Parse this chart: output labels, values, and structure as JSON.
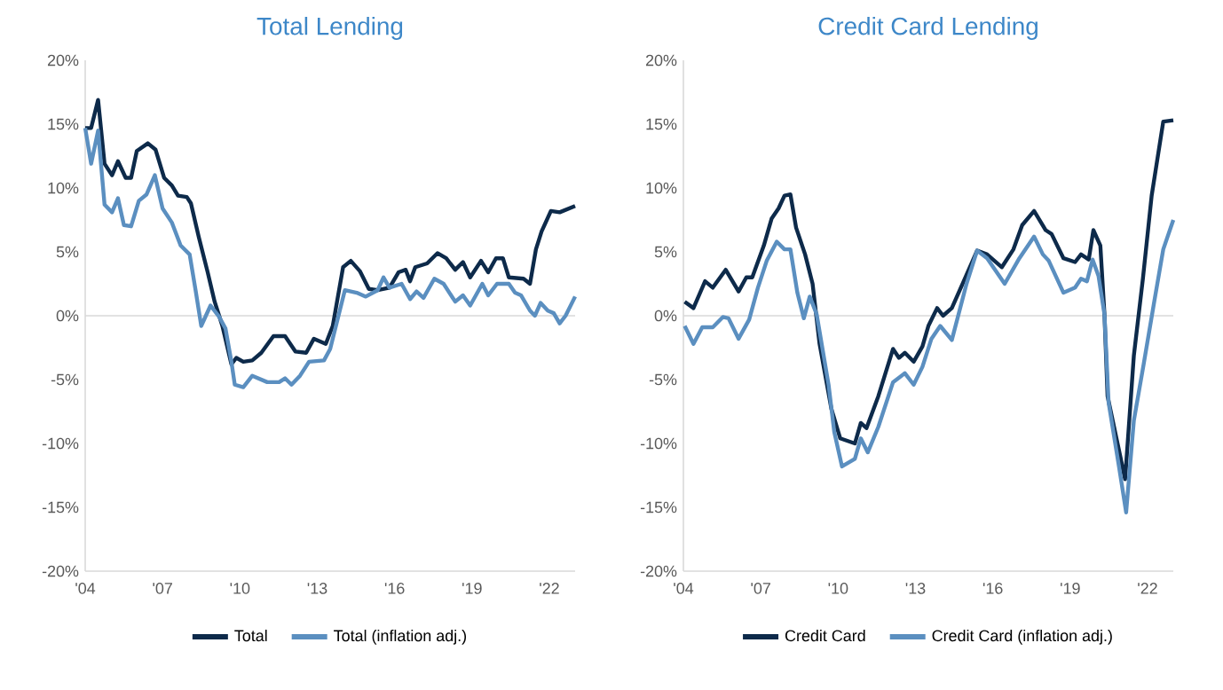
{
  "chart_data": [
    {
      "type": "line",
      "title": "Total Lending",
      "xlim": [
        2004,
        2023
      ],
      "ylim": [
        -20,
        20
      ],
      "legend": "bottom",
      "xticks": [
        {
          "value": 2004,
          "label": "'04"
        },
        {
          "value": 2007,
          "label": "'07"
        },
        {
          "value": 2010,
          "label": "'10"
        },
        {
          "value": 2013,
          "label": "'13"
        },
        {
          "value": 2016,
          "label": "'16"
        },
        {
          "value": 2019,
          "label": "'19"
        },
        {
          "value": 2022,
          "label": "'22"
        }
      ],
      "yticks": [
        {
          "value": -20,
          "label": "-20%"
        },
        {
          "value": -15,
          "label": "-15%"
        },
        {
          "value": -10,
          "label": "-10%"
        },
        {
          "value": -5,
          "label": "-5%"
        },
        {
          "value": 0,
          "label": "0%"
        },
        {
          "value": 5,
          "label": "5%"
        },
        {
          "value": 10,
          "label": "10%"
        },
        {
          "value": 15,
          "label": "15%"
        },
        {
          "value": 20,
          "label": "20%"
        }
      ],
      "ref_lines": [
        {
          "axis": "y",
          "value": 0,
          "color": "#d9d9d9"
        }
      ],
      "series": [
        {
          "name": "Total",
          "color": "#0d2a4a",
          "x": [
            2004,
            2004.23,
            2004.5,
            2004.75,
            2005.04,
            2005.27,
            2005.57,
            2005.78,
            2006.0,
            2006.43,
            2006.73,
            2007.06,
            2007.36,
            2007.6,
            2007.94,
            2008.1,
            2008.4,
            2008.75,
            2009.02,
            2009.32,
            2009.67,
            2009.86,
            2010.13,
            2010.48,
            2010.83,
            2011.3,
            2011.75,
            2012.15,
            2012.57,
            2012.87,
            2013.33,
            2013.6,
            2014.0,
            2014.3,
            2014.65,
            2015.0,
            2015.34,
            2015.8,
            2016.15,
            2016.43,
            2016.6,
            2016.8,
            2017.26,
            2017.66,
            2018.0,
            2018.35,
            2018.65,
            2018.93,
            2019.35,
            2019.63,
            2019.93,
            2020.2,
            2020.43,
            2021.0,
            2021.25,
            2021.48,
            2021.7,
            2022.06,
            2022.4,
            2023.0
          ],
          "values": [
            14.7,
            14.7,
            16.9,
            11.9,
            11.0,
            12.1,
            10.8,
            10.8,
            12.9,
            13.5,
            13.0,
            10.8,
            10.2,
            9.4,
            9.3,
            8.8,
            6.2,
            3.4,
            1.1,
            -0.8,
            -3.8,
            -3.3,
            -3.6,
            -3.5,
            -2.9,
            -1.6,
            -1.6,
            -2.8,
            -2.9,
            -1.8,
            -2.2,
            -0.8,
            3.8,
            4.3,
            3.5,
            2.1,
            2.0,
            2.2,
            3.4,
            3.6,
            2.7,
            3.8,
            4.1,
            4.9,
            4.5,
            3.6,
            4.2,
            3.0,
            4.3,
            3.4,
            4.5,
            4.5,
            3.0,
            2.9,
            2.5,
            5.2,
            6.6,
            8.2,
            8.1,
            8.6
          ]
        },
        {
          "name": "Total (inflation adj.)",
          "color": "#5b8fc0",
          "x": [
            2004,
            2004.23,
            2004.5,
            2004.75,
            2005.04,
            2005.27,
            2005.5,
            2005.78,
            2006.08,
            2006.38,
            2006.7,
            2007.0,
            2007.36,
            2007.7,
            2008.05,
            2008.28,
            2008.5,
            2008.86,
            2009.2,
            2009.44,
            2009.67,
            2009.8,
            2010.13,
            2010.48,
            2011.06,
            2011.52,
            2011.75,
            2012.0,
            2012.33,
            2012.68,
            2013.26,
            2013.5,
            2014.07,
            2014.53,
            2014.88,
            2015.34,
            2015.57,
            2015.8,
            2016.27,
            2016.6,
            2016.85,
            2017.12,
            2017.54,
            2017.9,
            2018.35,
            2018.65,
            2018.93,
            2019.4,
            2019.63,
            2019.97,
            2020.43,
            2020.67,
            2020.9,
            2021.25,
            2021.44,
            2021.66,
            2021.94,
            2022.17,
            2022.4,
            2022.63,
            2023.0
          ],
          "values": [
            14.7,
            11.9,
            14.5,
            8.7,
            8.1,
            9.2,
            7.1,
            7.0,
            9.0,
            9.5,
            11.0,
            8.4,
            7.3,
            5.5,
            4.8,
            2.0,
            -0.8,
            0.8,
            -0.1,
            -1.0,
            -3.6,
            -5.4,
            -5.6,
            -4.7,
            -5.2,
            -5.2,
            -4.9,
            -5.4,
            -4.7,
            -3.6,
            -3.5,
            -2.6,
            2.0,
            1.8,
            1.5,
            2.0,
            3.0,
            2.2,
            2.5,
            1.3,
            1.9,
            1.4,
            2.9,
            2.5,
            1.1,
            1.6,
            0.8,
            2.5,
            1.6,
            2.5,
            2.5,
            1.8,
            1.6,
            0.4,
            0.0,
            1.0,
            0.4,
            0.2,
            -0.6,
            0.0,
            1.5
          ]
        }
      ]
    },
    {
      "type": "line",
      "title": "Credit Card Lending",
      "xlim": [
        2004,
        2023
      ],
      "ylim": [
        -20,
        20
      ],
      "legend": "bottom",
      "xticks": [
        {
          "value": 2004,
          "label": "'04"
        },
        {
          "value": 2007,
          "label": "'07"
        },
        {
          "value": 2010,
          "label": "'10"
        },
        {
          "value": 2013,
          "label": "'13"
        },
        {
          "value": 2016,
          "label": "'16"
        },
        {
          "value": 2019,
          "label": "'19"
        },
        {
          "value": 2022,
          "label": "'22"
        }
      ],
      "yticks": [
        {
          "value": -20,
          "label": "-20%"
        },
        {
          "value": -15,
          "label": "-15%"
        },
        {
          "value": -10,
          "label": "-10%"
        },
        {
          "value": -5,
          "label": "-5%"
        },
        {
          "value": 0,
          "label": "0%"
        },
        {
          "value": 5,
          "label": "5%"
        },
        {
          "value": 10,
          "label": "10%"
        },
        {
          "value": 15,
          "label": "15%"
        },
        {
          "value": 20,
          "label": "20%"
        }
      ],
      "ref_lines": [
        {
          "axis": "y",
          "value": 0,
          "color": "#d9d9d9"
        }
      ],
      "series": [
        {
          "name": "Credit Card",
          "color": "#0d2a4a",
          "x": [
            2004.05,
            2004.39,
            2004.84,
            2005.14,
            2005.64,
            2006.14,
            2006.44,
            2006.67,
            2007.12,
            2007.42,
            2007.69,
            2007.92,
            2008.15,
            2008.37,
            2008.72,
            2009.01,
            2009.28,
            2009.74,
            2010.08,
            2010.65,
            2010.88,
            2011.1,
            2011.56,
            2012.13,
            2012.36,
            2012.59,
            2012.93,
            2013.27,
            2013.5,
            2013.84,
            2014.07,
            2014.41,
            2014.87,
            2015.39,
            2015.78,
            2016.35,
            2016.8,
            2017.14,
            2017.6,
            2018.05,
            2018.28,
            2018.74,
            2019.19,
            2019.42,
            2019.72,
            2019.9,
            2020.17,
            2020.33,
            2020.45,
            2021.13,
            2021.47,
            2021.82,
            2022.16,
            2022.61,
            2023.0
          ],
          "values": [
            1.1,
            0.6,
            2.7,
            2.2,
            3.6,
            1.9,
            3.0,
            3.0,
            5.5,
            7.6,
            8.4,
            9.4,
            9.5,
            6.9,
            4.8,
            2.5,
            -2.2,
            -7.3,
            -9.6,
            -10.0,
            -8.4,
            -8.8,
            -6.3,
            -2.6,
            -3.3,
            -2.9,
            -3.6,
            -2.4,
            -0.8,
            0.6,
            0.0,
            0.6,
            2.7,
            5.1,
            4.8,
            3.8,
            5.2,
            7.1,
            8.2,
            6.7,
            6.4,
            4.5,
            4.2,
            4.8,
            4.4,
            6.7,
            5.5,
            0.1,
            -6.3,
            -12.8,
            -3.1,
            2.9,
            9.4,
            15.2,
            15.3
          ]
        },
        {
          "name": "Credit Card (inflation adj.)",
          "color": "#5b8fc0",
          "x": [
            2004.05,
            2004.39,
            2004.73,
            2005.14,
            2005.53,
            2005.75,
            2006.14,
            2006.55,
            2006.89,
            2007.23,
            2007.62,
            2007.92,
            2008.15,
            2008.42,
            2008.67,
            2008.9,
            2009.17,
            2009.63,
            2009.85,
            2010.15,
            2010.65,
            2010.88,
            2011.15,
            2011.56,
            2012.13,
            2012.59,
            2012.93,
            2013.27,
            2013.62,
            2013.96,
            2014.41,
            2014.98,
            2015.39,
            2015.78,
            2016.46,
            2017.03,
            2017.6,
            2017.94,
            2018.17,
            2018.74,
            2019.19,
            2019.42,
            2019.65,
            2019.87,
            2020.1,
            2020.33,
            2020.49,
            2020.9,
            2021.17,
            2021.47,
            2021.85,
            2022.26,
            2022.61,
            2023.0
          ],
          "values": [
            -0.8,
            -2.2,
            -0.9,
            -0.9,
            -0.1,
            -0.2,
            -1.8,
            -0.3,
            2.2,
            4.3,
            5.8,
            5.2,
            5.2,
            1.8,
            -0.2,
            1.5,
            0.1,
            -5.4,
            -9.1,
            -11.8,
            -11.2,
            -9.6,
            -10.7,
            -8.7,
            -5.2,
            -4.5,
            -5.4,
            -4.0,
            -1.8,
            -0.8,
            -1.9,
            2.5,
            5.1,
            4.5,
            2.5,
            4.5,
            6.2,
            4.8,
            4.3,
            1.8,
            2.2,
            2.9,
            2.7,
            4.4,
            3.1,
            0.1,
            -6.8,
            -11.9,
            -15.4,
            -8.2,
            -3.8,
            1.1,
            5.2,
            7.5
          ]
        }
      ]
    }
  ]
}
